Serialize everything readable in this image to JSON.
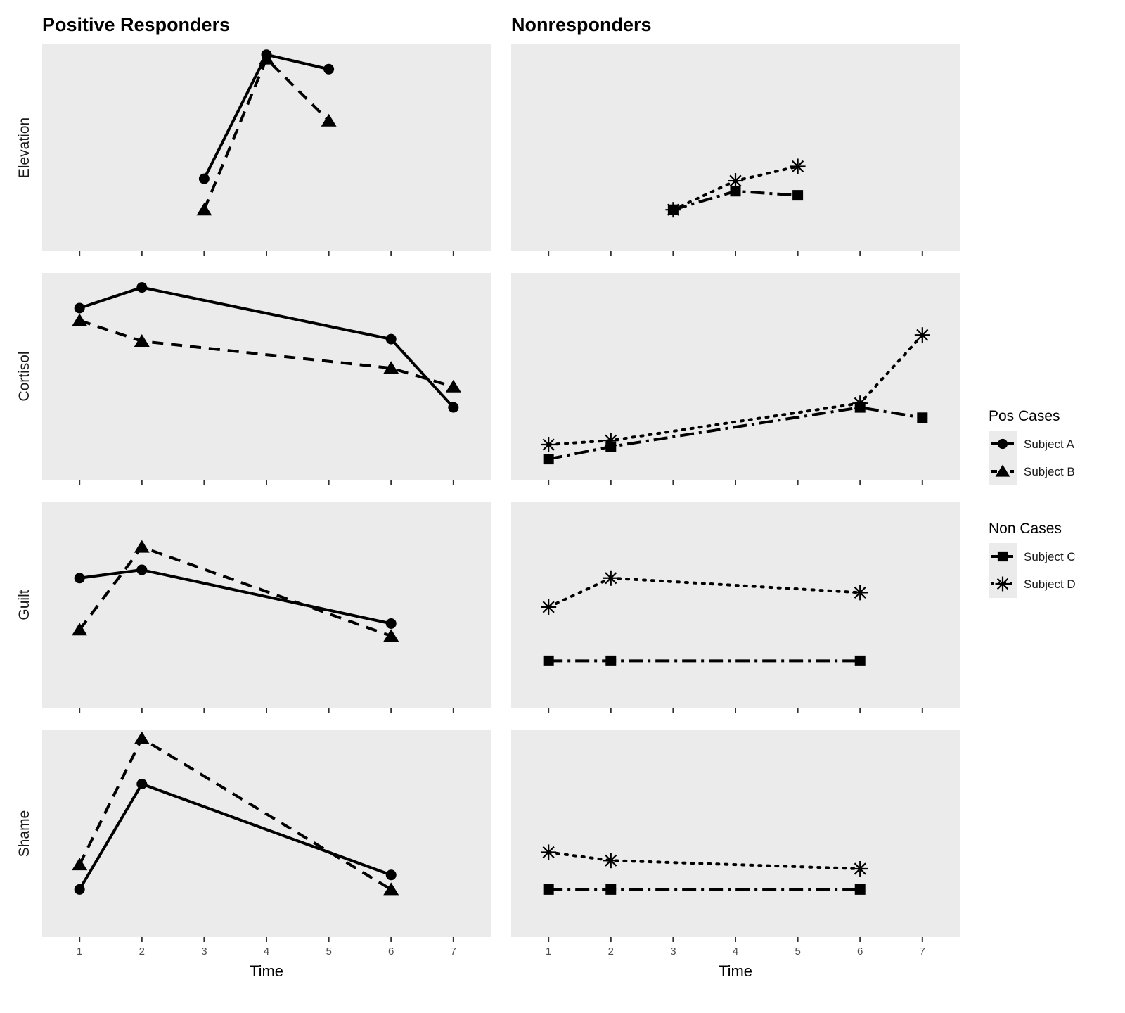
{
  "chart_data": {
    "type": "line",
    "facet_layout": "rows x columns",
    "columns": [
      "Positive Responders",
      "Nonresponders"
    ],
    "rows": [
      "Elevation",
      "Cortisol",
      "Guilt",
      "Shame"
    ],
    "x": [
      1,
      2,
      3,
      4,
      5,
      6,
      7
    ],
    "xlabel": "Time",
    "xlim": [
      0.4,
      7.6
    ],
    "y_ticks_shown": false,
    "grid": false,
    "panel_background": "#ebebeb",
    "legend_position": "right",
    "legends": [
      {
        "title": "Pos Cases",
        "items": [
          {
            "label": "Subject A",
            "marker": "circle",
            "linestyle": "solid"
          },
          {
            "label": "Subject B",
            "marker": "triangle",
            "linestyle": "dashed"
          }
        ]
      },
      {
        "title": "Non Cases",
        "items": [
          {
            "label": "Subject C",
            "marker": "square",
            "linestyle": "dashdot"
          },
          {
            "label": "Subject D",
            "marker": "asterisk",
            "linestyle": "dotted"
          }
        ]
      }
    ],
    "panels": [
      {
        "row": "Elevation",
        "column": "Positive Responders",
        "series": [
          {
            "subject": "Subject A",
            "x": [
              3,
              4,
              5
            ],
            "y": [
              0.35,
              0.95,
              0.88
            ]
          },
          {
            "subject": "Subject B",
            "x": [
              3,
              4,
              5
            ],
            "y": [
              0.2,
              0.93,
              0.63
            ]
          }
        ]
      },
      {
        "row": "Elevation",
        "column": "Nonresponders",
        "series": [
          {
            "subject": "Subject C",
            "x": [
              3,
              4,
              5
            ],
            "y": [
              0.2,
              0.29,
              0.27
            ]
          },
          {
            "subject": "Subject D",
            "x": [
              3,
              4,
              5
            ],
            "y": [
              0.2,
              0.34,
              0.41
            ]
          }
        ]
      },
      {
        "row": "Cortisol",
        "column": "Positive Responders",
        "series": [
          {
            "subject": "Subject A",
            "x": [
              1,
              2,
              6,
              7
            ],
            "y": [
              0.83,
              0.93,
              0.68,
              0.35
            ]
          },
          {
            "subject": "Subject B",
            "x": [
              1,
              2,
              6,
              7
            ],
            "y": [
              0.77,
              0.67,
              0.54,
              0.45
            ]
          }
        ]
      },
      {
        "row": "Cortisol",
        "column": "Nonresponders",
        "series": [
          {
            "subject": "Subject C",
            "x": [
              1,
              2,
              6,
              7
            ],
            "y": [
              0.1,
              0.16,
              0.35,
              0.3
            ]
          },
          {
            "subject": "Subject D",
            "x": [
              1,
              2,
              6,
              7
            ],
            "y": [
              0.17,
              0.19,
              0.37,
              0.7
            ]
          }
        ]
      },
      {
        "row": "Guilt",
        "column": "Positive Responders",
        "series": [
          {
            "subject": "Subject A",
            "x": [
              1,
              2,
              6
            ],
            "y": [
              0.63,
              0.67,
              0.41
            ]
          },
          {
            "subject": "Subject B",
            "x": [
              1,
              2,
              6
            ],
            "y": [
              0.38,
              0.78,
              0.35
            ]
          }
        ]
      },
      {
        "row": "Guilt",
        "column": "Nonresponders",
        "series": [
          {
            "subject": "Subject C",
            "x": [
              1,
              2,
              6
            ],
            "y": [
              0.23,
              0.23,
              0.23
            ]
          },
          {
            "subject": "Subject D",
            "x": [
              1,
              2,
              6
            ],
            "y": [
              0.49,
              0.63,
              0.56
            ]
          }
        ]
      },
      {
        "row": "Shame",
        "column": "Positive Responders",
        "series": [
          {
            "subject": "Subject A",
            "x": [
              1,
              2,
              6
            ],
            "y": [
              0.23,
              0.74,
              0.3
            ]
          },
          {
            "subject": "Subject B",
            "x": [
              1,
              2,
              6
            ],
            "y": [
              0.35,
              0.96,
              0.23
            ]
          }
        ]
      },
      {
        "row": "Shame",
        "column": "Nonresponders",
        "series": [
          {
            "subject": "Subject C",
            "x": [
              1,
              2,
              6
            ],
            "y": [
              0.23,
              0.23,
              0.23
            ]
          },
          {
            "subject": "Subject D",
            "x": [
              1,
              2,
              6
            ],
            "y": [
              0.41,
              0.37,
              0.33
            ]
          }
        ]
      }
    ]
  }
}
